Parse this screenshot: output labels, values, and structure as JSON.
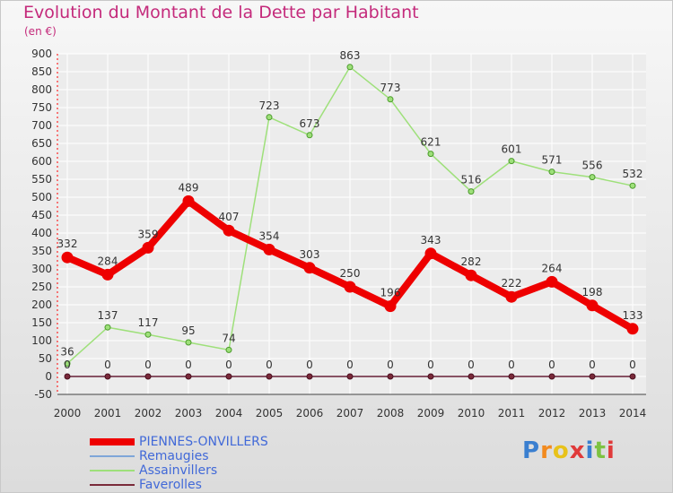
{
  "title": "Evolution du Montant de la Dette par Habitant",
  "unit": "(en €)",
  "brand": "Proxiti",
  "colors": {
    "title": "#c42a7b",
    "legend_text": "#4169d8",
    "grid": "#ffffff",
    "axis": "#ff0000"
  },
  "chart_data": {
    "type": "line",
    "x": [
      "2000",
      "2001",
      "2002",
      "2003",
      "2004",
      "2005",
      "2006",
      "2007",
      "2008",
      "2009",
      "2010",
      "2011",
      "2012",
      "2013",
      "2014"
    ],
    "ylim": [
      -50,
      900
    ],
    "yticks": [
      -50,
      0,
      50,
      100,
      150,
      200,
      250,
      300,
      350,
      400,
      450,
      500,
      550,
      600,
      650,
      700,
      750,
      800,
      850,
      900
    ],
    "grid": true,
    "legend_position": "bottom-left",
    "series": [
      {
        "name": "PIENNES-ONVILLERS",
        "color": "#ee0000",
        "values": [
          332,
          284,
          359,
          489,
          407,
          354,
          303,
          250,
          196,
          343,
          282,
          222,
          264,
          198,
          133
        ],
        "labels": [
          "332",
          "284",
          "359",
          "489",
          "407",
          "354",
          "303",
          "250",
          "196",
          "343",
          "282",
          "222",
          "264",
          "198",
          "133"
        ]
      },
      {
        "name": "Remaugies",
        "color": "#7ea6d8",
        "values": [
          0,
          0,
          0,
          0,
          0,
          0,
          0,
          0,
          0,
          0,
          0,
          0,
          0,
          0,
          0
        ],
        "labels": []
      },
      {
        "name": "Assainvillers",
        "color": "#9ee07a",
        "values": [
          36,
          137,
          117,
          95,
          74,
          723,
          673,
          863,
          773,
          621,
          516,
          601,
          571,
          556,
          532
        ],
        "labels": [
          "36",
          "137",
          "117",
          "95",
          "74",
          "723",
          "673",
          "863",
          "773",
          "621",
          "516",
          "601",
          "571",
          "556",
          "532"
        ]
      },
      {
        "name": "Faverolles",
        "color": "#7a2a3a",
        "values": [
          0,
          0,
          0,
          0,
          0,
          0,
          0,
          0,
          0,
          0,
          0,
          0,
          0,
          0,
          0
        ],
        "labels": [
          "0",
          "0",
          "0",
          "0",
          "0",
          "0",
          "0",
          "0",
          "0",
          "0",
          "0",
          "0",
          "0",
          "0",
          "0"
        ]
      }
    ]
  }
}
